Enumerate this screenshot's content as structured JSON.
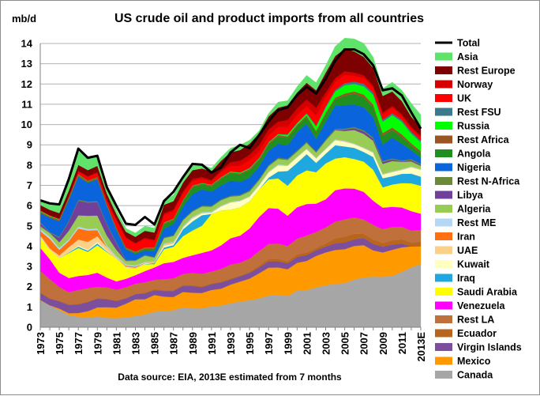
{
  "chart_data": {
    "type": "area",
    "stacked": true,
    "title": "US crude oil and product imports from all countries",
    "ylabel": "mb/d",
    "source_note": "Data source: EIA, 2013E estimated from 7 months",
    "ylim": [
      0,
      14
    ],
    "y_ticks": [
      0,
      1,
      2,
      3,
      4,
      5,
      6,
      7,
      8,
      9,
      10,
      11,
      12,
      13,
      14
    ],
    "grid": true,
    "legend_position": "right",
    "x": [
      "1973",
      "1974",
      "1975",
      "1976",
      "1977",
      "1978",
      "1979",
      "1980",
      "1981",
      "1982",
      "1983",
      "1984",
      "1985",
      "1986",
      "1987",
      "1988",
      "1989",
      "1990",
      "1991",
      "1992",
      "1993",
      "1994",
      "1995",
      "1996",
      "1997",
      "1998",
      "1999",
      "2000",
      "2001",
      "2002",
      "2003",
      "2004",
      "2005",
      "2006",
      "2007",
      "2008",
      "2009",
      "2010",
      "2011",
      "2012",
      "2013E"
    ],
    "x_tick_labels": [
      "1973",
      "1975",
      "1977",
      "1979",
      "1981",
      "1983",
      "1985",
      "1987",
      "1989",
      "1991",
      "1993",
      "1995",
      "1997",
      "1999",
      "2001",
      "2003",
      "2005",
      "2007",
      "2009",
      "2011",
      "2013E"
    ],
    "total": [
      6.26,
      6.11,
      6.06,
      7.31,
      8.81,
      8.36,
      8.46,
      6.91,
      5.99,
      5.11,
      5.05,
      5.44,
      5.07,
      6.22,
      6.68,
      7.4,
      8.06,
      8.02,
      7.63,
      7.89,
      8.62,
      9.0,
      8.84,
      9.48,
      10.16,
      10.71,
      10.85,
      11.46,
      11.87,
      11.53,
      12.26,
      13.15,
      13.71,
      13.71,
      13.47,
      12.92,
      11.69,
      11.79,
      11.44,
      10.6,
      9.8
    ],
    "series": [
      {
        "name": "Canada",
        "color": "#a6a6a6",
        "values": [
          1.33,
          1.07,
          0.85,
          0.6,
          0.52,
          0.47,
          0.54,
          0.46,
          0.45,
          0.48,
          0.55,
          0.63,
          0.77,
          0.81,
          0.84,
          0.99,
          0.93,
          0.93,
          1.03,
          1.07,
          1.18,
          1.27,
          1.33,
          1.42,
          1.56,
          1.6,
          1.54,
          1.81,
          1.83,
          1.97,
          2.07,
          2.14,
          2.18,
          2.35,
          2.46,
          2.49,
          2.48,
          2.54,
          2.73,
          2.95,
          3.12
        ]
      },
      {
        "name": "Mexico",
        "color": "#ff9900",
        "values": [
          0.02,
          0.01,
          0.07,
          0.09,
          0.18,
          0.32,
          0.44,
          0.53,
          0.52,
          0.68,
          0.83,
          0.75,
          0.82,
          0.7,
          0.65,
          0.75,
          0.77,
          0.76,
          0.81,
          0.83,
          0.92,
          0.98,
          1.07,
          1.24,
          1.38,
          1.35,
          1.32,
          1.37,
          1.44,
          1.55,
          1.62,
          1.67,
          1.67,
          1.66,
          1.59,
          1.3,
          1.21,
          1.28,
          1.21,
          1.04,
          0.88
        ]
      },
      {
        "name": "Virgin Islands",
        "color": "#7b4f9e",
        "values": [
          0.33,
          0.33,
          0.36,
          0.4,
          0.42,
          0.45,
          0.43,
          0.39,
          0.32,
          0.26,
          0.25,
          0.29,
          0.24,
          0.28,
          0.3,
          0.3,
          0.33,
          0.28,
          0.29,
          0.31,
          0.26,
          0.26,
          0.28,
          0.29,
          0.31,
          0.3,
          0.29,
          0.29,
          0.29,
          0.28,
          0.29,
          0.33,
          0.33,
          0.33,
          0.35,
          0.32,
          0.28,
          0.25,
          0.19,
          0.0,
          0.0
        ]
      },
      {
        "name": "Ecuador",
        "color": "#b8651e",
        "values": [
          0.05,
          0.03,
          0.01,
          0.04,
          0.04,
          0.03,
          0.02,
          0.03,
          0.03,
          0.03,
          0.02,
          0.04,
          0.05,
          0.04,
          0.04,
          0.05,
          0.05,
          0.05,
          0.04,
          0.04,
          0.05,
          0.04,
          0.05,
          0.09,
          0.11,
          0.11,
          0.1,
          0.13,
          0.12,
          0.1,
          0.14,
          0.24,
          0.28,
          0.27,
          0.2,
          0.22,
          0.18,
          0.21,
          0.21,
          0.18,
          0.22
        ]
      },
      {
        "name": "Rest LA",
        "color": "#c0703a",
        "values": [
          1.05,
          0.94,
          0.7,
          0.6,
          0.68,
          0.66,
          0.57,
          0.56,
          0.53,
          0.53,
          0.5,
          0.51,
          0.46,
          0.54,
          0.59,
          0.54,
          0.6,
          0.62,
          0.58,
          0.63,
          0.68,
          0.64,
          0.66,
          0.72,
          0.75,
          0.77,
          0.76,
          0.77,
          0.85,
          0.8,
          0.81,
          0.83,
          0.86,
          0.81,
          0.72,
          0.72,
          0.69,
          0.67,
          0.62,
          0.6,
          0.58
        ]
      },
      {
        "name": "Venezuela",
        "color": "#ff00ff",
        "values": [
          1.14,
          0.98,
          0.7,
          0.7,
          0.69,
          0.65,
          0.69,
          0.48,
          0.41,
          0.41,
          0.42,
          0.55,
          0.61,
          0.79,
          0.8,
          0.79,
          0.87,
          1.03,
          1.04,
          1.16,
          1.3,
          1.33,
          1.48,
          1.68,
          1.77,
          1.72,
          1.49,
          1.55,
          1.55,
          1.4,
          1.38,
          1.55,
          1.53,
          1.42,
          1.36,
          1.19,
          1.06,
          0.99,
          0.95,
          0.96,
          0.8
        ]
      },
      {
        "name": "Saudi Arabia",
        "color": "#ffff00",
        "values": [
          0.49,
          0.46,
          0.72,
          1.23,
          1.38,
          1.14,
          1.36,
          1.26,
          1.13,
          0.55,
          0.34,
          0.33,
          0.17,
          0.69,
          0.75,
          1.07,
          1.22,
          1.34,
          1.8,
          1.72,
          1.41,
          1.4,
          1.34,
          1.36,
          1.41,
          1.49,
          1.48,
          1.57,
          1.66,
          1.55,
          1.77,
          1.56,
          1.54,
          1.46,
          1.49,
          1.53,
          1.0,
          1.1,
          1.2,
          1.37,
          1.38
        ]
      },
      {
        "name": "Iraq",
        "color": "#1fa8e0",
        "values": [
          0.0,
          0.0,
          0.0,
          0.03,
          0.07,
          0.06,
          0.09,
          0.03,
          0.0,
          0.0,
          0.01,
          0.01,
          0.05,
          0.08,
          0.08,
          0.34,
          0.45,
          0.52,
          0.0,
          0.0,
          0.0,
          0.0,
          0.0,
          0.0,
          0.09,
          0.34,
          0.73,
          0.62,
          0.8,
          0.46,
          0.48,
          0.66,
          0.53,
          0.55,
          0.48,
          0.63,
          0.45,
          0.41,
          0.46,
          0.48,
          0.45
        ]
      },
      {
        "name": "Kuwait",
        "color": "#ffffc0",
        "values": [
          0.05,
          0.0,
          0.01,
          0.01,
          0.05,
          0.04,
          0.07,
          0.03,
          0.0,
          0.01,
          0.01,
          0.03,
          0.01,
          0.08,
          0.07,
          0.07,
          0.15,
          0.09,
          0.06,
          0.2,
          0.36,
          0.31,
          0.22,
          0.2,
          0.25,
          0.31,
          0.25,
          0.27,
          0.24,
          0.22,
          0.22,
          0.25,
          0.23,
          0.18,
          0.18,
          0.21,
          0.18,
          0.2,
          0.19,
          0.31,
          0.33
        ]
      },
      {
        "name": "UAE",
        "color": "#fcd089",
        "values": [
          0.07,
          0.07,
          0.12,
          0.25,
          0.3,
          0.39,
          0.28,
          0.17,
          0.05,
          0.05,
          0.01,
          0.02,
          0.01,
          0.08,
          0.05,
          0.03,
          0.03,
          0.02,
          0.01,
          0.0,
          0.0,
          0.0,
          0.01,
          0.0,
          0.02,
          0.01,
          0.01,
          0.01,
          0.01,
          0.0,
          0.01,
          0.01,
          0.02,
          0.01,
          0.01,
          0.01,
          0.01,
          0.01,
          0.01,
          0.02,
          0.01
        ]
      },
      {
        "name": "Iran",
        "color": "#ff7010",
        "values": [
          0.22,
          0.47,
          0.28,
          0.3,
          0.54,
          0.56,
          0.3,
          0.01,
          0.0,
          0.04,
          0.05,
          0.01,
          0.01,
          0.0,
          0.01,
          0.0,
          0.0,
          0.0,
          0.0,
          0.0,
          0.0,
          0.0,
          0.0,
          0.0,
          0.0,
          0.0,
          0.0,
          0.0,
          0.0,
          0.0,
          0.0,
          0.0,
          0.0,
          0.0,
          0.0,
          0.0,
          0.0,
          0.0,
          0.0,
          0.0,
          0.0
        ]
      },
      {
        "name": "Rest ME",
        "color": "#b4d7f5",
        "values": [
          0.09,
          0.1,
          0.09,
          0.08,
          0.09,
          0.08,
          0.08,
          0.08,
          0.07,
          0.06,
          0.05,
          0.05,
          0.05,
          0.04,
          0.04,
          0.04,
          0.04,
          0.04,
          0.04,
          0.04,
          0.03,
          0.03,
          0.03,
          0.03,
          0.03,
          0.03,
          0.03,
          0.03,
          0.03,
          0.03,
          0.03,
          0.03,
          0.03,
          0.03,
          0.03,
          0.03,
          0.03,
          0.03,
          0.03,
          0.03,
          0.03
        ]
      },
      {
        "name": "Algeria",
        "color": "#99cc55",
        "values": [
          0.14,
          0.19,
          0.28,
          0.43,
          0.56,
          0.65,
          0.64,
          0.49,
          0.31,
          0.17,
          0.24,
          0.32,
          0.19,
          0.27,
          0.29,
          0.31,
          0.27,
          0.28,
          0.25,
          0.27,
          0.26,
          0.23,
          0.23,
          0.23,
          0.27,
          0.28,
          0.26,
          0.25,
          0.28,
          0.26,
          0.39,
          0.45,
          0.48,
          0.66,
          0.67,
          0.55,
          0.49,
          0.51,
          0.36,
          0.24,
          0.16
        ]
      },
      {
        "name": "Libya",
        "color": "#70409a",
        "values": [
          0.16,
          0.0,
          0.23,
          0.45,
          0.72,
          0.65,
          0.66,
          0.55,
          0.32,
          0.03,
          0.0,
          0.0,
          0.0,
          0.0,
          0.0,
          0.0,
          0.0,
          0.0,
          0.0,
          0.0,
          0.0,
          0.0,
          0.0,
          0.0,
          0.0,
          0.0,
          0.0,
          0.0,
          0.0,
          0.0,
          0.0,
          0.02,
          0.06,
          0.09,
          0.12,
          0.1,
          0.08,
          0.07,
          0.02,
          0.06,
          0.05
        ]
      },
      {
        "name": "Rest N-Africa",
        "color": "#6a8a3a",
        "values": [
          0.04,
          0.04,
          0.04,
          0.04,
          0.05,
          0.05,
          0.05,
          0.04,
          0.04,
          0.03,
          0.03,
          0.03,
          0.03,
          0.03,
          0.03,
          0.04,
          0.04,
          0.04,
          0.04,
          0.04,
          0.04,
          0.04,
          0.05,
          0.05,
          0.05,
          0.05,
          0.05,
          0.05,
          0.05,
          0.05,
          0.05,
          0.05,
          0.06,
          0.06,
          0.06,
          0.06,
          0.06,
          0.06,
          0.05,
          0.05,
          0.05
        ]
      },
      {
        "name": "Nigeria",
        "color": "#0a64dc",
        "values": [
          0.46,
          0.71,
          0.76,
          1.03,
          1.14,
          0.92,
          1.08,
          0.86,
          0.62,
          0.51,
          0.3,
          0.22,
          0.29,
          0.44,
          0.54,
          0.62,
          0.82,
          0.8,
          0.7,
          0.68,
          0.74,
          0.64,
          0.63,
          0.62,
          0.7,
          0.69,
          0.66,
          0.9,
          0.89,
          0.62,
          0.87,
          1.14,
          1.17,
          1.11,
          1.13,
          1.0,
          0.81,
          1.02,
          0.82,
          0.44,
          0.31
        ]
      },
      {
        "name": "Angola",
        "color": "#1f8f1f",
        "values": [
          0.0,
          0.0,
          0.02,
          0.03,
          0.03,
          0.03,
          0.03,
          0.04,
          0.03,
          0.03,
          0.05,
          0.08,
          0.12,
          0.22,
          0.2,
          0.26,
          0.34,
          0.24,
          0.26,
          0.33,
          0.36,
          0.36,
          0.37,
          0.31,
          0.32,
          0.36,
          0.37,
          0.3,
          0.33,
          0.33,
          0.37,
          0.31,
          0.46,
          0.53,
          0.51,
          0.51,
          0.45,
          0.38,
          0.35,
          0.23,
          0.22
        ]
      },
      {
        "name": "Rest Africa",
        "color": "#9b5523",
        "values": [
          0.07,
          0.07,
          0.07,
          0.07,
          0.07,
          0.06,
          0.06,
          0.06,
          0.06,
          0.05,
          0.05,
          0.05,
          0.05,
          0.05,
          0.05,
          0.05,
          0.05,
          0.05,
          0.06,
          0.06,
          0.06,
          0.06,
          0.06,
          0.06,
          0.06,
          0.07,
          0.07,
          0.07,
          0.07,
          0.07,
          0.08,
          0.09,
          0.1,
          0.11,
          0.12,
          0.12,
          0.12,
          0.12,
          0.12,
          0.11,
          0.1
        ]
      },
      {
        "name": "Russia",
        "color": "#00ff00",
        "values": [
          0.03,
          0.03,
          0.02,
          0.02,
          0.02,
          0.01,
          0.01,
          0.01,
          0.01,
          0.01,
          0.01,
          0.01,
          0.01,
          0.02,
          0.02,
          0.02,
          0.02,
          0.02,
          0.02,
          0.02,
          0.03,
          0.04,
          0.03,
          0.03,
          0.03,
          0.04,
          0.08,
          0.07,
          0.09,
          0.21,
          0.25,
          0.3,
          0.41,
          0.37,
          0.41,
          0.47,
          0.56,
          0.61,
          0.62,
          0.48,
          0.43
        ]
      },
      {
        "name": "Rest FSU",
        "color": "#3a7a8a",
        "values": [
          0.01,
          0.01,
          0.01,
          0.01,
          0.01,
          0.01,
          0.01,
          0.01,
          0.01,
          0.01,
          0.01,
          0.01,
          0.01,
          0.01,
          0.01,
          0.01,
          0.01,
          0.01,
          0.01,
          0.01,
          0.01,
          0.01,
          0.02,
          0.02,
          0.02,
          0.02,
          0.03,
          0.03,
          0.04,
          0.05,
          0.06,
          0.08,
          0.1,
          0.12,
          0.12,
          0.11,
          0.1,
          0.1,
          0.1,
          0.1,
          0.09
        ]
      },
      {
        "name": "UK",
        "color": "#ff0000",
        "values": [
          0.02,
          0.01,
          0.01,
          0.03,
          0.13,
          0.18,
          0.2,
          0.18,
          0.38,
          0.46,
          0.38,
          0.4,
          0.31,
          0.35,
          0.35,
          0.32,
          0.22,
          0.19,
          0.16,
          0.23,
          0.27,
          0.31,
          0.38,
          0.31,
          0.32,
          0.33,
          0.35,
          0.37,
          0.32,
          0.48,
          0.44,
          0.38,
          0.4,
          0.27,
          0.28,
          0.24,
          0.25,
          0.26,
          0.16,
          0.15,
          0.14
        ]
      },
      {
        "name": "Norway",
        "color": "#d60000",
        "values": [
          0.01,
          0.01,
          0.01,
          0.02,
          0.02,
          0.04,
          0.04,
          0.03,
          0.04,
          0.04,
          0.04,
          0.08,
          0.04,
          0.1,
          0.09,
          0.1,
          0.11,
          0.1,
          0.06,
          0.1,
          0.18,
          0.26,
          0.27,
          0.32,
          0.31,
          0.27,
          0.35,
          0.34,
          0.34,
          0.4,
          0.24,
          0.2,
          0.19,
          0.17,
          0.14,
          0.1,
          0.11,
          0.09,
          0.11,
          0.09,
          0.08
        ]
      },
      {
        "name": "Rest Europe",
        "color": "#7f0000",
        "values": [
          0.25,
          0.26,
          0.27,
          0.28,
          0.3,
          0.3,
          0.31,
          0.29,
          0.25,
          0.27,
          0.31,
          0.34,
          0.37,
          0.42,
          0.42,
          0.43,
          0.43,
          0.42,
          0.43,
          0.47,
          0.49,
          0.53,
          0.54,
          0.58,
          0.64,
          0.69,
          0.73,
          0.78,
          0.83,
          0.86,
          0.99,
          1.09,
          1.11,
          1.05,
          0.91,
          0.88,
          0.81,
          0.72,
          0.65,
          0.5,
          0.41
        ]
      },
      {
        "name": "Asia",
        "color": "#5fe36a",
        "values": [
          0.23,
          0.32,
          0.43,
          0.57,
          0.68,
          0.57,
          0.48,
          0.32,
          0.22,
          0.17,
          0.19,
          0.23,
          0.22,
          0.18,
          0.31,
          0.22,
          0.24,
          0.18,
          0.16,
          0.18,
          0.21,
          0.25,
          0.18,
          0.13,
          0.15,
          0.28,
          0.23,
          0.29,
          0.37,
          0.38,
          0.35,
          0.48,
          0.53,
          0.62,
          0.67,
          0.53,
          0.37,
          0.46,
          0.54,
          0.66,
          0.64
        ]
      }
    ]
  }
}
